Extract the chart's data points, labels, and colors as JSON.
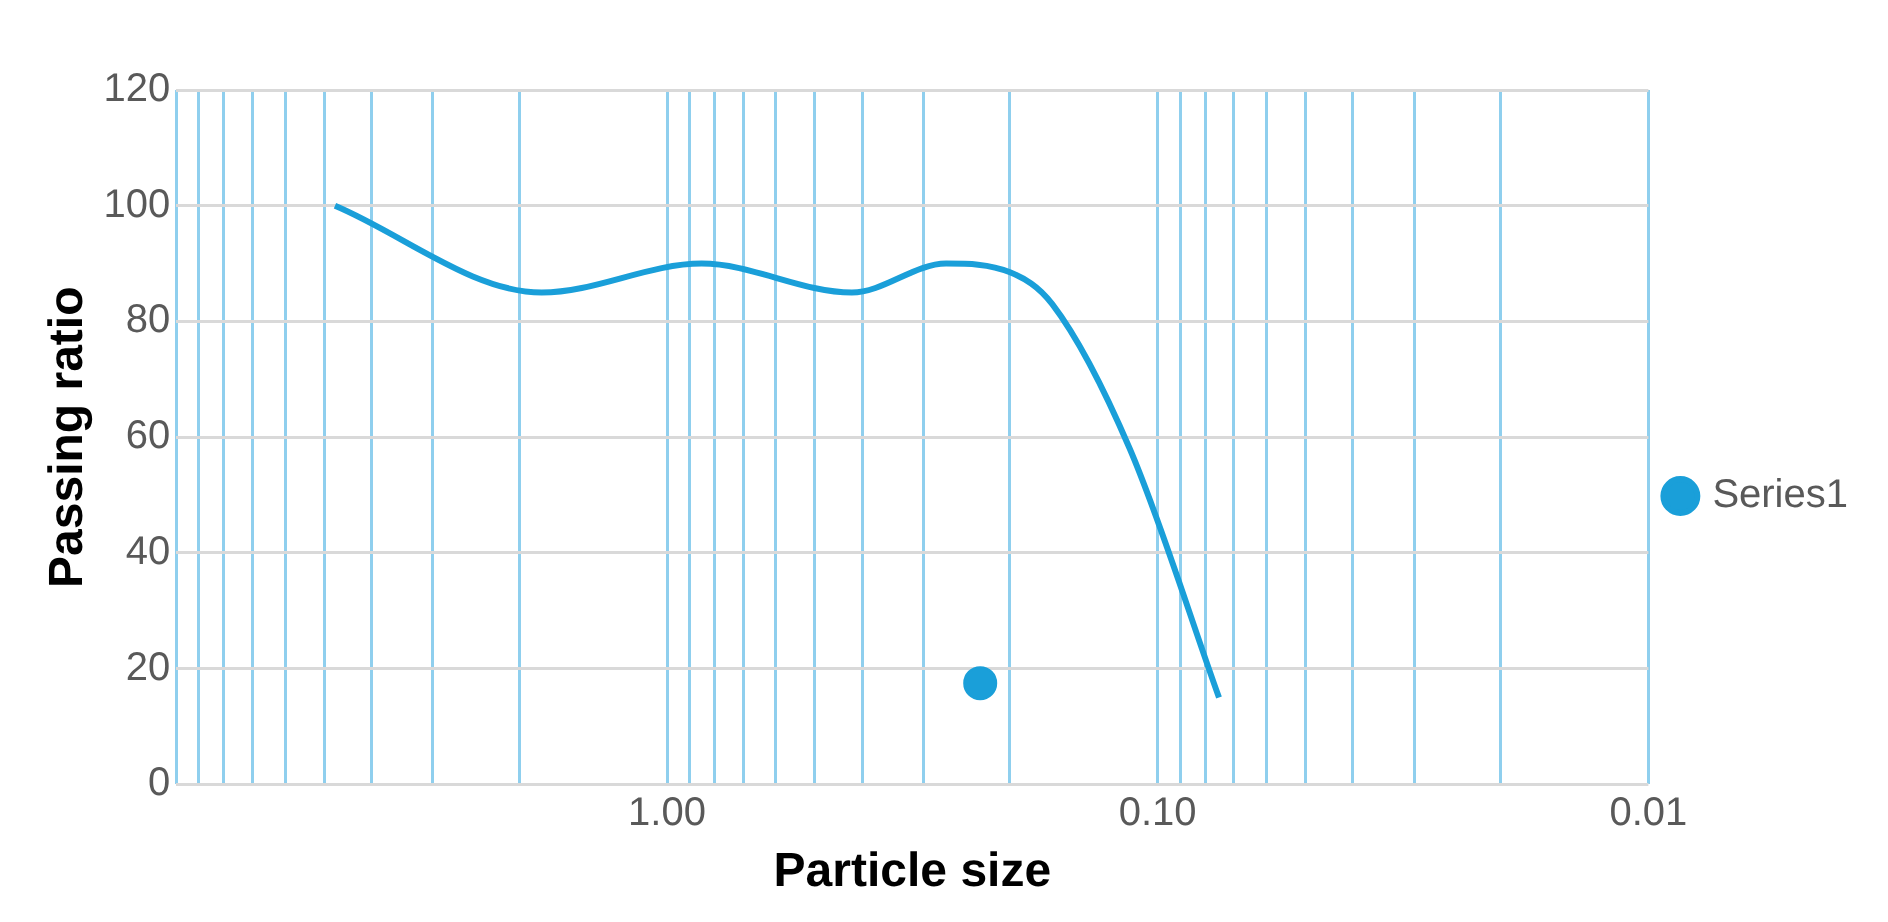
{
  "chart_data": {
    "type": "line",
    "xlabel": "Particle size",
    "ylabel": "Passing ratio",
    "xlim": [
      10,
      0.01
    ],
    "log": "x",
    "xticks": [
      {
        "value": 10,
        "label": null
      },
      {
        "value": 9,
        "label": null
      },
      {
        "value": 8,
        "label": null
      },
      {
        "value": 7,
        "label": null
      },
      {
        "value": 6,
        "label": null
      },
      {
        "value": 5,
        "label": null
      },
      {
        "value": 4,
        "label": null
      },
      {
        "value": 3,
        "label": null
      },
      {
        "value": 2,
        "label": null
      },
      {
        "value": 1,
        "label": "1.00"
      },
      {
        "value": 0.9,
        "label": null
      },
      {
        "value": 0.8,
        "label": null
      },
      {
        "value": 0.7,
        "label": null
      },
      {
        "value": 0.6,
        "label": null
      },
      {
        "value": 0.5,
        "label": null
      },
      {
        "value": 0.4,
        "label": null
      },
      {
        "value": 0.3,
        "label": null
      },
      {
        "value": 0.2,
        "label": null
      },
      {
        "value": 0.1,
        "label": "0.10"
      },
      {
        "value": 0.09,
        "label": null
      },
      {
        "value": 0.08,
        "label": null
      },
      {
        "value": 0.07,
        "label": null
      },
      {
        "value": 0.06,
        "label": null
      },
      {
        "value": 0.05,
        "label": null
      },
      {
        "value": 0.04,
        "label": null
      },
      {
        "value": 0.03,
        "label": null
      },
      {
        "value": 0.02,
        "label": null
      },
      {
        "value": 0.01,
        "label": "0.01"
      }
    ],
    "ylim": [
      0,
      120
    ],
    "yticks": [
      0,
      20,
      40,
      60,
      80,
      100,
      120
    ],
    "grid": true,
    "legend": "right",
    "line_style": "solid",
    "series": [
      {
        "name": "Series1",
        "color": "#1a9fd9",
        "type": "line",
        "marker": "none",
        "x": [
          4.75,
          1.8,
          0.85,
          0.42,
          0.27,
          0.2,
          0.164,
          0.114,
          0.075
        ],
        "values": [
          100,
          85,
          90,
          85,
          90,
          88.5,
          83,
          58,
          15
        ]
      },
      {
        "color": "#1a9fd9",
        "type": "scatter",
        "marker": "circle",
        "x": [
          0.23
        ],
        "values": [
          17.5
        ]
      }
    ]
  }
}
